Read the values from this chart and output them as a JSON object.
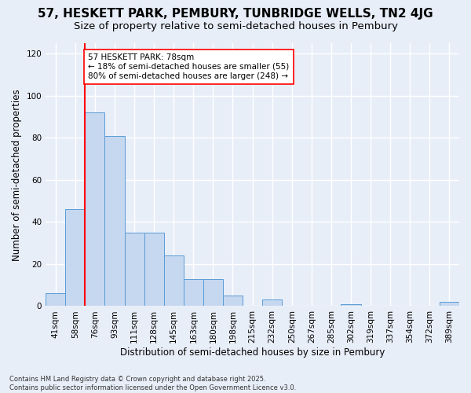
{
  "title": "57, HESKETT PARK, PEMBURY, TUNBRIDGE WELLS, TN2 4JG",
  "subtitle": "Size of property relative to semi-detached houses in Pembury",
  "xlabel": "Distribution of semi-detached houses by size in Pembury",
  "ylabel": "Number of semi-detached properties",
  "categories": [
    "41sqm",
    "58sqm",
    "76sqm",
    "93sqm",
    "111sqm",
    "128sqm",
    "145sqm",
    "163sqm",
    "180sqm",
    "198sqm",
    "215sqm",
    "232sqm",
    "250sqm",
    "267sqm",
    "285sqm",
    "302sqm",
    "319sqm",
    "337sqm",
    "354sqm",
    "372sqm",
    "389sqm"
  ],
  "values": [
    6,
    46,
    92,
    81,
    35,
    35,
    24,
    13,
    13,
    5,
    0,
    3,
    0,
    0,
    0,
    1,
    0,
    0,
    0,
    0,
    2
  ],
  "bar_color": "#c5d8f0",
  "bar_edge_color": "#5b9bd5",
  "background_color": "#e8eef8",
  "annotation_text": "57 HESKETT PARK: 78sqm\n← 18% of semi-detached houses are smaller (55)\n80% of semi-detached houses are larger (248) →",
  "vline_position": 1.5,
  "vline_color": "red",
  "annotation_box_color": "white",
  "annotation_box_edge_color": "red",
  "ylim": [
    0,
    125
  ],
  "yticks": [
    0,
    20,
    40,
    60,
    80,
    100,
    120
  ],
  "footer": "Contains HM Land Registry data © Crown copyright and database right 2025.\nContains public sector information licensed under the Open Government Licence v3.0.",
  "title_fontsize": 11,
  "subtitle_fontsize": 9.5,
  "label_fontsize": 8.5,
  "tick_fontsize": 7.5,
  "annotation_fontsize": 7.5,
  "footer_fontsize": 6
}
